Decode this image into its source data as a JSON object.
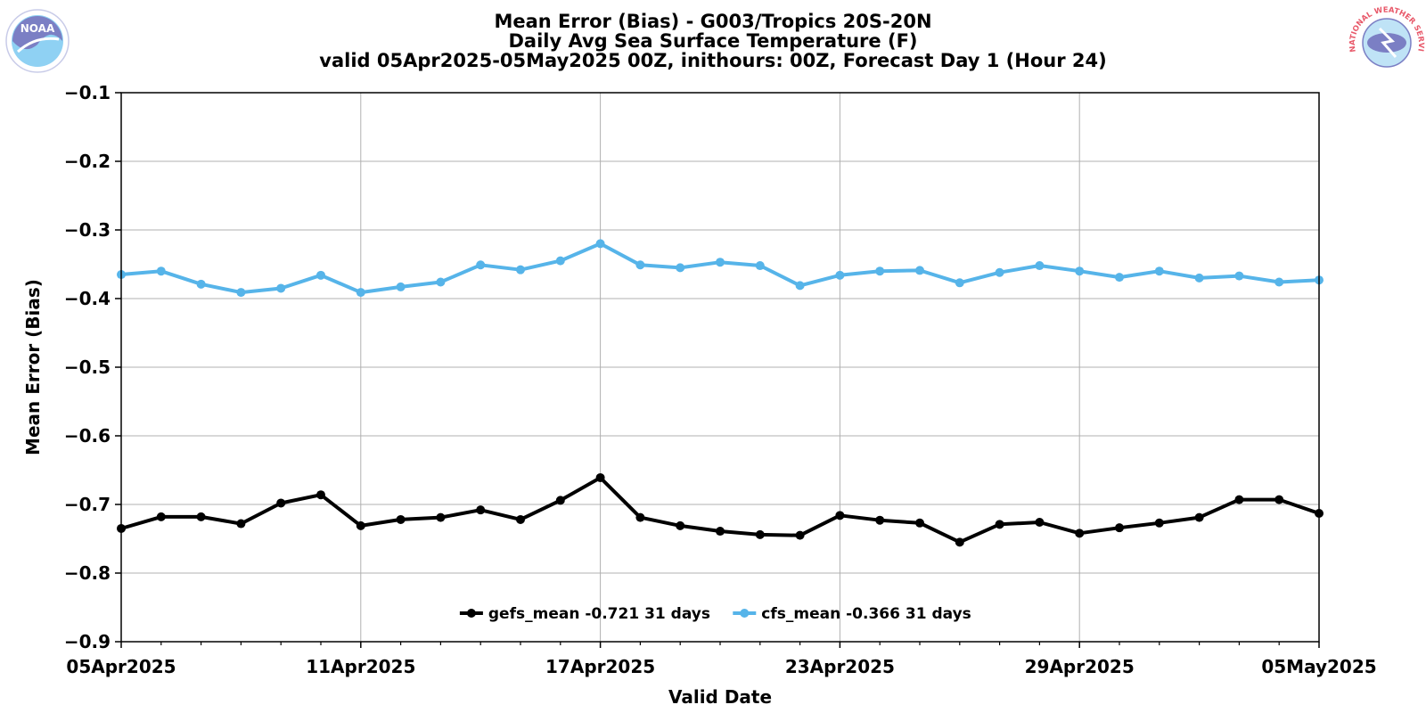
{
  "chart_data": {
    "type": "line",
    "title_lines": [
      "Mean Error (Bias) - G003/Tropics 20S-20N",
      "Daily Avg Sea Surface Temperature (F)",
      "valid 05Apr2025-05May2025 00Z, inithours: 00Z, Forecast Day 1 (Hour 24)"
    ],
    "xlabel": "Valid Date",
    "ylabel": "Mean Error (Bias)",
    "x": [
      "05Apr2025",
      "06Apr2025",
      "07Apr2025",
      "08Apr2025",
      "09Apr2025",
      "10Apr2025",
      "11Apr2025",
      "12Apr2025",
      "13Apr2025",
      "14Apr2025",
      "15Apr2025",
      "16Apr2025",
      "17Apr2025",
      "18Apr2025",
      "19Apr2025",
      "20Apr2025",
      "21Apr2025",
      "22Apr2025",
      "23Apr2025",
      "24Apr2025",
      "25Apr2025",
      "26Apr2025",
      "27Apr2025",
      "28Apr2025",
      "29Apr2025",
      "30Apr2025",
      "01May2025",
      "02May2025",
      "03May2025",
      "04May2025",
      "05May2025"
    ],
    "x_ticks": [
      "05Apr2025",
      "11Apr2025",
      "17Apr2025",
      "23Apr2025",
      "29Apr2025",
      "05May2025"
    ],
    "ylim": [
      -0.9,
      -0.1
    ],
    "y_ticks": [
      -0.1,
      -0.2,
      -0.3,
      -0.4,
      -0.5,
      -0.6,
      -0.7,
      -0.8,
      -0.9
    ],
    "y_tick_labels": [
      "−0.1",
      "−0.2",
      "−0.3",
      "−0.4",
      "−0.5",
      "−0.6",
      "−0.7",
      "−0.8",
      "−0.9"
    ],
    "grid": true,
    "legend_placement": "lower-center",
    "series": [
      {
        "name": "gefs_mean -0.721 31 days",
        "color": "#000000",
        "values": [
          -0.735,
          -0.718,
          -0.718,
          -0.728,
          -0.698,
          -0.686,
          -0.731,
          -0.722,
          -0.719,
          -0.708,
          -0.722,
          -0.694,
          -0.661,
          -0.719,
          -0.731,
          -0.739,
          -0.744,
          -0.745,
          -0.716,
          -0.723,
          -0.727,
          -0.755,
          -0.729,
          -0.726,
          -0.742,
          -0.734,
          -0.727,
          -0.719,
          -0.693,
          -0.693,
          -0.713
        ]
      },
      {
        "name": "cfs_mean -0.366 31 days",
        "color": "#56b4e9",
        "values": [
          -0.365,
          -0.36,
          -0.379,
          -0.391,
          -0.385,
          -0.366,
          -0.391,
          -0.383,
          -0.376,
          -0.351,
          -0.358,
          -0.345,
          -0.32,
          -0.351,
          -0.355,
          -0.347,
          -0.352,
          -0.381,
          -0.366,
          -0.36,
          -0.359,
          -0.377,
          -0.362,
          -0.352,
          -0.36,
          -0.369,
          -0.36,
          -0.37,
          -0.367,
          -0.376,
          -0.373
        ]
      }
    ]
  },
  "logos": {
    "left": {
      "name": "noaa-logo",
      "text": "NOAA",
      "color": "#7b7fc4"
    },
    "right": {
      "name": "nws-logo",
      "text": "NATIONAL WEATHER SERVICE",
      "color": "#e8596a"
    }
  }
}
